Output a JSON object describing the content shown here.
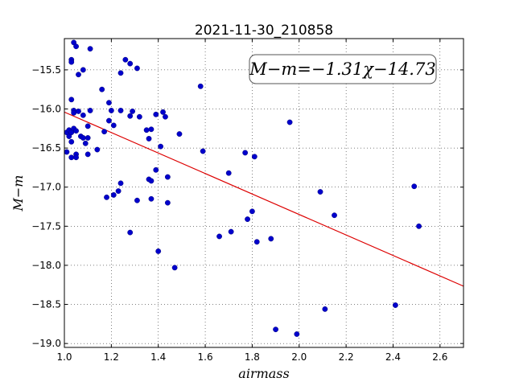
{
  "chart_data": {
    "type": "scatter",
    "title": "2021-11-30_210858",
    "xlabel": "airmass",
    "ylabel": "M−m",
    "xlim": [
      1.0,
      2.7
    ],
    "ylim": [
      -19.05,
      -15.1
    ],
    "xticks": [
      "1.0",
      "1.2",
      "1.4",
      "1.6",
      "1.8",
      "2.0",
      "2.2",
      "2.4",
      "2.6"
    ],
    "yticks": [
      "−15.5",
      "−16.0",
      "−16.5",
      "−17.0",
      "−17.5",
      "−18.0",
      "−18.5",
      "−19.0"
    ],
    "grid": true,
    "annotation": "M−m=−1.31χ−14.73",
    "fit": {
      "slope": -1.31,
      "intercept": -14.73,
      "color": "#dd0000"
    },
    "point_color": "#0000cc",
    "points": [
      [
        1.01,
        -16.3
      ],
      [
        1.01,
        -16.55
      ],
      [
        1.02,
        -16.27
      ],
      [
        1.02,
        -16.35
      ],
      [
        1.03,
        -16.3
      ],
      [
        1.03,
        -16.42
      ],
      [
        1.03,
        -16.62
      ],
      [
        1.03,
        -15.37
      ],
      [
        1.03,
        -15.4
      ],
      [
        1.03,
        -15.88
      ],
      [
        1.04,
        -16.02
      ],
      [
        1.04,
        -16.05
      ],
      [
        1.04,
        -16.25
      ],
      [
        1.05,
        -16.28
      ],
      [
        1.05,
        -16.58
      ],
      [
        1.05,
        -16.62
      ],
      [
        1.04,
        -15.15
      ],
      [
        1.05,
        -15.2
      ],
      [
        1.06,
        -15.56
      ],
      [
        1.06,
        -16.03
      ],
      [
        1.07,
        -16.35
      ],
      [
        1.08,
        -16.37
      ],
      [
        1.08,
        -16.08
      ],
      [
        1.08,
        -15.5
      ],
      [
        1.09,
        -16.44
      ],
      [
        1.1,
        -16.22
      ],
      [
        1.1,
        -16.37
      ],
      [
        1.11,
        -16.02
      ],
      [
        1.1,
        -16.58
      ],
      [
        1.11,
        -15.23
      ],
      [
        1.14,
        -16.52
      ],
      [
        1.16,
        -15.75
      ],
      [
        1.17,
        -16.29
      ],
      [
        1.18,
        -17.13
      ],
      [
        1.19,
        -16.15
      ],
      [
        1.19,
        -15.92
      ],
      [
        1.2,
        -16.02
      ],
      [
        1.21,
        -16.21
      ],
      [
        1.21,
        -17.1
      ],
      [
        1.23,
        -17.05
      ],
      [
        1.24,
        -16.95
      ],
      [
        1.24,
        -15.54
      ],
      [
        1.24,
        -16.02
      ],
      [
        1.26,
        -15.37
      ],
      [
        1.28,
        -15.42
      ],
      [
        1.28,
        -16.09
      ],
      [
        1.29,
        -16.03
      ],
      [
        1.28,
        -17.58
      ],
      [
        1.31,
        -15.48
      ],
      [
        1.31,
        -17.17
      ],
      [
        1.32,
        -16.1
      ],
      [
        1.35,
        -16.27
      ],
      [
        1.36,
        -16.38
      ],
      [
        1.36,
        -16.9
      ],
      [
        1.37,
        -16.92
      ],
      [
        1.37,
        -16.26
      ],
      [
        1.37,
        -17.15
      ],
      [
        1.39,
        -16.07
      ],
      [
        1.39,
        -16.78
      ],
      [
        1.4,
        -17.82
      ],
      [
        1.41,
        -16.48
      ],
      [
        1.42,
        -16.04
      ],
      [
        1.43,
        -16.1
      ],
      [
        1.44,
        -16.87
      ],
      [
        1.44,
        -17.2
      ],
      [
        1.47,
        -18.03
      ],
      [
        1.49,
        -16.32
      ],
      [
        1.58,
        -15.71
      ],
      [
        1.59,
        -16.54
      ],
      [
        1.66,
        -17.63
      ],
      [
        1.7,
        -16.82
      ],
      [
        1.71,
        -17.57
      ],
      [
        1.77,
        -16.56
      ],
      [
        1.78,
        -17.41
      ],
      [
        1.8,
        -17.31
      ],
      [
        1.81,
        -16.61
      ],
      [
        1.82,
        -17.7
      ],
      [
        1.88,
        -17.66
      ],
      [
        1.9,
        -18.82
      ],
      [
        1.96,
        -16.17
      ],
      [
        1.99,
        -18.88
      ],
      [
        2.09,
        -17.06
      ],
      [
        2.11,
        -18.56
      ],
      [
        2.15,
        -17.36
      ],
      [
        2.41,
        -18.51
      ],
      [
        2.49,
        -16.99
      ],
      [
        2.51,
        -17.5
      ]
    ]
  }
}
